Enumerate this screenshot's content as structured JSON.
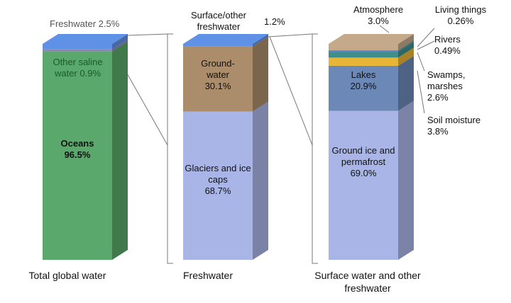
{
  "chart_data": [
    {
      "type": "stacked-bar",
      "xlabel": "Total global water",
      "series": [
        {
          "name": "Oceans",
          "color": "#5aa86b",
          "values": [
            96.5
          ],
          "value_labels": [
            "96.5%"
          ]
        },
        {
          "name": "Other saline water",
          "color": "#8f84b8",
          "values": [
            0.9
          ],
          "value_labels": [
            "0.9%"
          ]
        },
        {
          "name": "Freshwater",
          "color": "#5f92e6",
          "values": [
            2.5
          ],
          "value_labels": [
            "2.5%"
          ]
        }
      ]
    },
    {
      "type": "stacked-bar",
      "xlabel": "Freshwater",
      "series": [
        {
          "name": "Glaciers and ice caps",
          "color": "#a9b5e6",
          "values": [
            68.7
          ],
          "value_labels": [
            "68.7%"
          ]
        },
        {
          "name": "Ground-water",
          "color": "#ab8c6b",
          "values": [
            30.1
          ],
          "value_labels": [
            "30.1%"
          ]
        },
        {
          "name": "Surface/other freshwater",
          "color": "#5f92e6",
          "values": [
            1.2
          ],
          "value_labels": [
            "1.2%"
          ]
        }
      ]
    },
    {
      "type": "stacked-bar",
      "xlabel": "Surface water and other freshwater",
      "series": [
        {
          "name": "Ground ice and permafrost",
          "color": "#a9b5e6",
          "values": [
            69.0
          ],
          "value_labels": [
            "69.0%"
          ]
        },
        {
          "name": "Lakes",
          "color": "#6c88b6",
          "values": [
            20.9
          ],
          "value_labels": [
            "20.9%"
          ]
        },
        {
          "name": "Soil moisture",
          "color": "#e8b536",
          "values": [
            3.8
          ],
          "value_labels": [
            "3.8%"
          ]
        },
        {
          "name": "Swamps, marshes",
          "color": "#3f8f88",
          "values": [
            2.6
          ],
          "value_labels": [
            "2.6%"
          ]
        },
        {
          "name": "Rivers",
          "color": "#4c82cc",
          "values": [
            0.49
          ],
          "value_labels": [
            "0.49%"
          ]
        },
        {
          "name": "Living things",
          "color": "#3f8f45",
          "values": [
            0.26
          ],
          "value_labels": [
            "0.26%"
          ]
        },
        {
          "name": "Atmosphere",
          "color": "#c4aa8b",
          "values": [
            3.0
          ],
          "value_labels": [
            "3.0%"
          ]
        }
      ]
    }
  ]
}
